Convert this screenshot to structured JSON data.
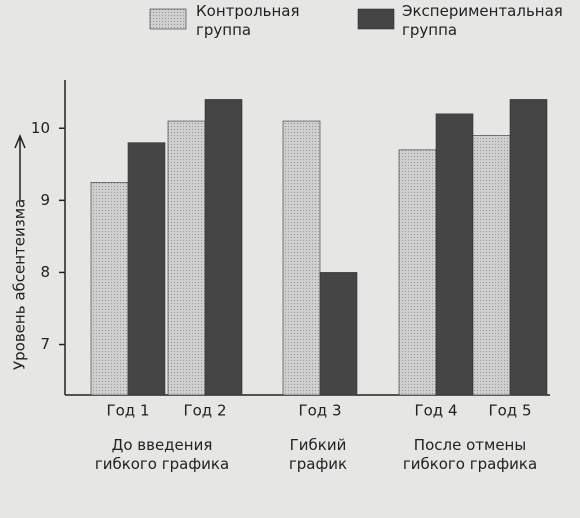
{
  "chart_data": {
    "type": "bar",
    "y_label": "Уровень абсентеизма",
    "categories": [
      "Год 1",
      "Год 2",
      "Год 3",
      "Год 4",
      "Год 5"
    ],
    "category_groups": [
      "До введения гибкого графика",
      "Гибкий график",
      "После отмены гибкого графика"
    ],
    "series": [
      {
        "name": "Контрольная группа",
        "color": "#c4c4c4",
        "values": [
          9.25,
          10.1,
          10.1,
          9.7,
          9.9
        ]
      },
      {
        "name": "Экспериментальная группа",
        "color": "#454545",
        "values": [
          9.8,
          10.4,
          8.0,
          10.2,
          10.4
        ]
      }
    ],
    "ylim": [
      6.3,
      10.6
    ],
    "yticks": [
      7,
      8,
      9,
      10
    ]
  }
}
